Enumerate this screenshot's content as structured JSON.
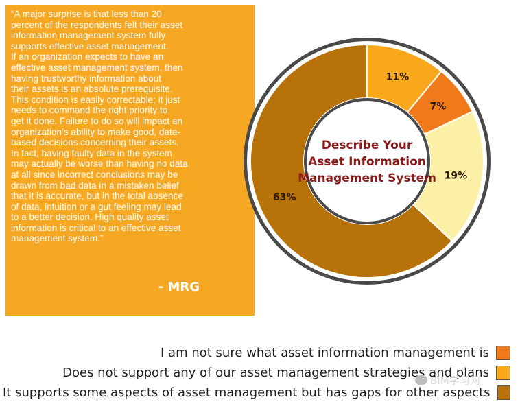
{
  "quote": {
    "lines": [
      "“A major surprise is that less than 20",
      "percent of the respondents felt their asset",
      "information management system fully",
      "supports effective asset management.",
      "If an organization expects to have an",
      "effective asset management system, then",
      "having trustworthy information about",
      "their assets is an absolute prerequisite.",
      "This condition is easily correctable; it just",
      "needs to command the right priority to",
      "get it done. Failure to do so will impact an",
      "organization’s ability to make good, data-",
      "based decisions concerning their assets.",
      "In fact, having faulty data in the system",
      "may actually be worse than having no data",
      "at all since incorrect conclusions may be",
      "drawn from bad data in a mistaken belief",
      "that it is accurate, but in the total absence",
      "of data, intuition or a gut feeling may lead",
      "to a better decision. High quality asset",
      "information is critical to an effective asset",
      "management system.”"
    ],
    "author": "- MRG"
  },
  "chart_data": {
    "type": "pie",
    "title": "Describe Your Asset Information Management System",
    "title_lines": [
      "Describe Your",
      "Asset Information",
      "Management System"
    ],
    "donut": true,
    "slices": [
      {
        "label": "Does not support any of our asset management strategies and plans",
        "value": 11,
        "display": "11%",
        "color": "#f9a81c"
      },
      {
        "label": "I am not sure what asset information management is",
        "value": 7,
        "display": "7%",
        "color": "#f07a1a"
      },
      {
        "label": "",
        "value": 19,
        "display": "19%",
        "color": "#fcefa6"
      },
      {
        "label": "It supports some aspects of asset management but has gaps for other aspects",
        "value": 63,
        "display": "63%",
        "color": "#b8720a"
      }
    ],
    "legend": [
      {
        "label": "I am not sure what asset information management is",
        "color": "#f07a1a"
      },
      {
        "label": "Does not support any of our asset management strategies and plans",
        "color": "#f9a81c"
      },
      {
        "label": "It supports some aspects of asset management but has gaps for other aspects",
        "color": "#b8720a"
      }
    ],
    "legend_placement": "bottom-right"
  },
  "colors": {
    "quote_bg": "#f7a823",
    "chart_title": "#8b1a1a",
    "ring_outline": "#4a4a4a"
  },
  "watermark": {
    "text": "BIM学习网",
    "icon": "chat-bubble-icon"
  }
}
